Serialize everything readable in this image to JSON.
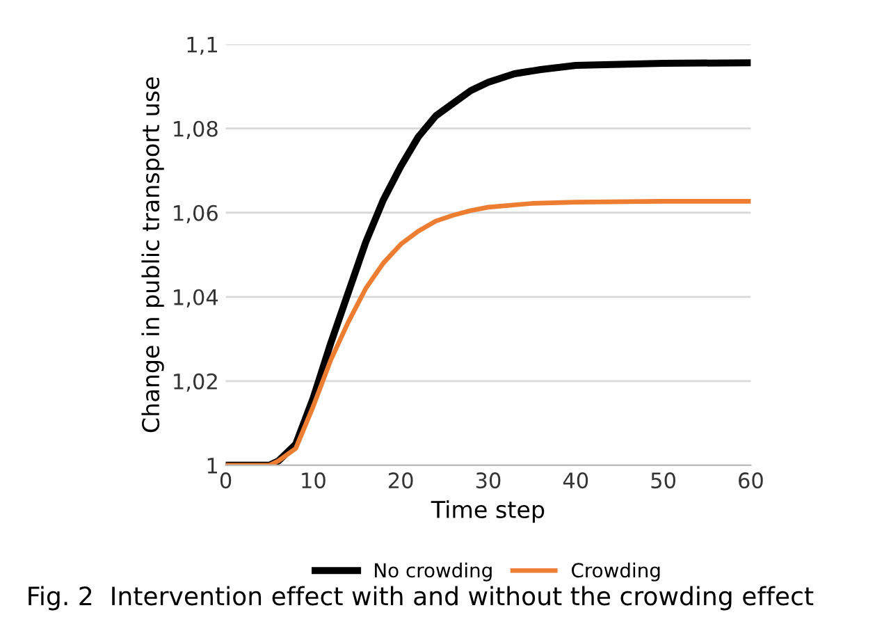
{
  "chart_data": {
    "type": "line",
    "xlabel": "Time step",
    "ylabel": "Change in public transport use",
    "annotations": [
      "Fig. 2  Intervention effect with and without the crowding effect"
    ],
    "xlim": [
      0,
      60
    ],
    "xticks": [
      0,
      10,
      20,
      30,
      40,
      50,
      60
    ],
    "ylim": [
      1,
      1.1
    ],
    "yticks": [
      {
        "value": 1,
        "label": "1"
      },
      {
        "value": 1.02,
        "label": "1,02"
      },
      {
        "value": 1.04,
        "label": "1,04"
      },
      {
        "value": 1.06,
        "label": "1,06"
      },
      {
        "value": 1.08,
        "label": "1,08"
      },
      {
        "value": 1.1,
        "label": "1,1"
      }
    ],
    "grid": "y",
    "legend": "bottom",
    "marker": "none",
    "line_style": "solid",
    "series": [
      {
        "name": "No crowding",
        "color": "#000000",
        "x": [
          0,
          5,
          6,
          8,
          10,
          12,
          14,
          16,
          18,
          20,
          22,
          24,
          26,
          28,
          30,
          33,
          36,
          40,
          50,
          60
        ],
        "values": [
          1,
          1,
          1.001,
          1.005,
          1.016,
          1.029,
          1.041,
          1.053,
          1.063,
          1.071,
          1.078,
          1.083,
          1.086,
          1.089,
          1.091,
          1.093,
          1.094,
          1.095,
          1.0955,
          1.0956
        ]
      },
      {
        "name": "Crowding",
        "color": "#ed7d31",
        "x": [
          0,
          5,
          6,
          8,
          10,
          12,
          14,
          16,
          18,
          20,
          22,
          24,
          26,
          28,
          30,
          35,
          40,
          50,
          60
        ],
        "values": [
          1,
          1,
          1.001,
          1.004,
          1.014,
          1.025,
          1.034,
          1.042,
          1.048,
          1.0525,
          1.0556,
          1.058,
          1.0594,
          1.0605,
          1.0613,
          1.0622,
          1.0625,
          1.0627,
          1.0627
        ]
      }
    ]
  }
}
